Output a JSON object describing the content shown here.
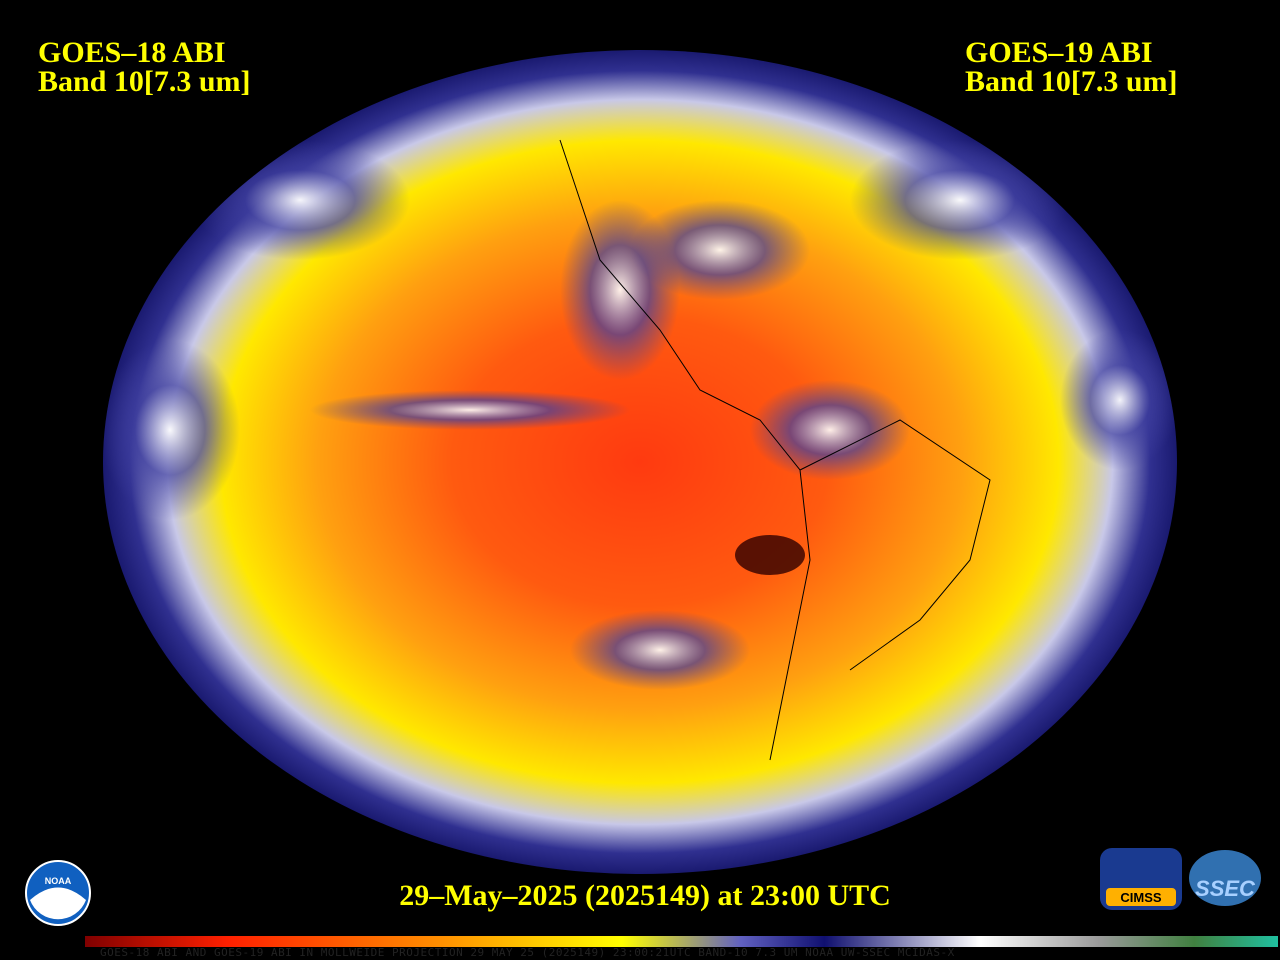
{
  "header": {
    "left": {
      "satellite": "GOES–18 ABI",
      "band": "Band 10[7.3 um]"
    },
    "right": {
      "satellite": "GOES–19 ABI",
      "band": "Band 10[7.3 um]"
    }
  },
  "timestamp": "29–May–2025 (2025149) at 23:00 UTC",
  "footer": "GOES-18 ABI AND GOES-19 ABI IN MOLLWEIDE PROJECTION 29 MAY 25 (2025149) 23:00:21UTC BAND-10 7.3 UM NOAA UW-SSEC MCIDAS-X",
  "logos": {
    "noaa": "NOAA",
    "cimss": "CIMSS",
    "ssec": "SSEC"
  }
}
